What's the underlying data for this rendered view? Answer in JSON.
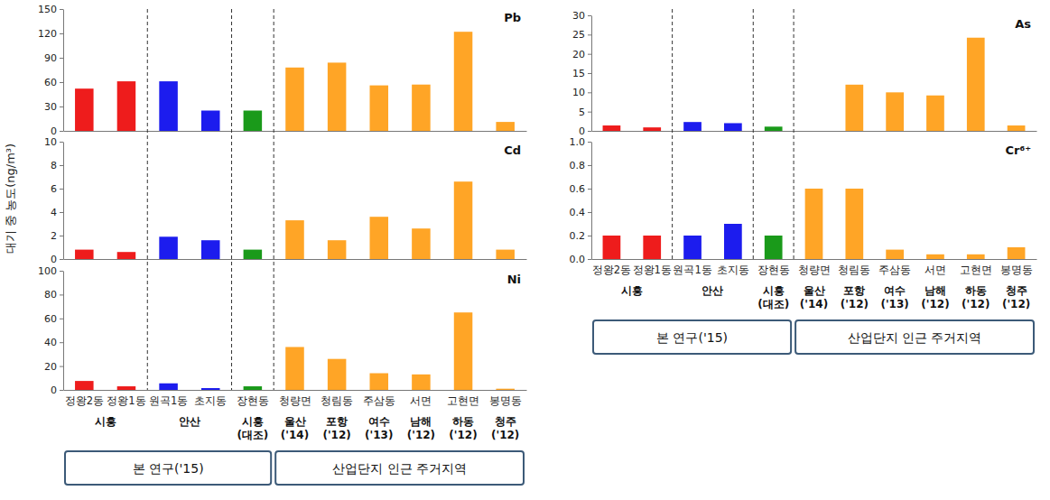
{
  "chart_data": [
    {
      "type": "bar",
      "title": "Pb",
      "y_label": "대기 중 농도(ng/m³)",
      "categories": [
        "정왕2동",
        "정왕1동",
        "원곡1동",
        "초지동",
        "장현동",
        "청량면",
        "청림동",
        "주삼동",
        "서면",
        "고현면",
        "봉명동"
      ],
      "values": [
        52,
        61,
        61,
        25,
        25,
        78,
        84,
        56,
        57,
        122,
        11
      ],
      "colors": [
        "#ee1c1c",
        "#ee1c1c",
        "#1c1cee",
        "#1c1cee",
        "#1a9a1a",
        "#ffa526",
        "#ffa526",
        "#ffa526",
        "#ffa526",
        "#ffa526",
        "#ffa526"
      ],
      "ylim": [
        0,
        150
      ],
      "yticks": [
        0,
        30,
        60,
        90,
        120,
        150
      ],
      "tick_labels": "y"
    },
    {
      "type": "bar",
      "title": "Cd",
      "categories": [
        "정왕2동",
        "정왕1동",
        "원곡1동",
        "초지동",
        "장현동",
        "청량면",
        "청림동",
        "주삼동",
        "서면",
        "고현면",
        "봉명동"
      ],
      "values": [
        0.8,
        0.6,
        1.9,
        1.6,
        0.8,
        3.3,
        1.6,
        3.6,
        2.6,
        6.6,
        0.8
      ],
      "colors": [
        "#ee1c1c",
        "#ee1c1c",
        "#1c1cee",
        "#1c1cee",
        "#1a9a1a",
        "#ffa526",
        "#ffa526",
        "#ffa526",
        "#ffa526",
        "#ffa526",
        "#ffa526"
      ],
      "ylim": [
        0,
        10
      ],
      "yticks": [
        0,
        2,
        4,
        6,
        8,
        10
      ],
      "tick_labels": "y"
    },
    {
      "type": "bar",
      "title": "Ni",
      "categories": [
        "정왕2동",
        "정왕1동",
        "원곡1동",
        "초지동",
        "장현동",
        "청량면",
        "청림동",
        "주삼동",
        "서면",
        "고현면",
        "봉명동"
      ],
      "values": [
        7.5,
        3,
        5.5,
        1.5,
        3,
        36,
        26,
        14,
        13,
        65,
        1
      ],
      "colors": [
        "#ee1c1c",
        "#ee1c1c",
        "#1c1cee",
        "#1c1cee",
        "#1a9a1a",
        "#ffa526",
        "#ffa526",
        "#ffa526",
        "#ffa526",
        "#ffa526",
        "#ffa526"
      ],
      "ylim": [
        0,
        100
      ],
      "yticks": [
        0,
        20,
        40,
        60,
        80,
        100
      ],
      "category_groups": [
        {
          "label": "시흥",
          "start": 0,
          "end": 1
        },
        {
          "label": "안산",
          "start": 2,
          "end": 3
        },
        {
          "label": "시흥\n(대조)",
          "start": 4,
          "end": 4
        },
        {
          "label": "울산\n('14)",
          "start": 5,
          "end": 5
        },
        {
          "label": "포항\n('12)",
          "start": 6,
          "end": 6
        },
        {
          "label": "여수\n('13)",
          "start": 7,
          "end": 7
        },
        {
          "label": "남해\n('12)",
          "start": 8,
          "end": 8
        },
        {
          "label": "하동\n('12)",
          "start": 9,
          "end": 9
        },
        {
          "label": "청주\n('12)",
          "start": 10,
          "end": 10
        }
      ],
      "sections": [
        {
          "label": "본 연구('15)",
          "start": 0,
          "end": 4
        },
        {
          "label": "산업단지 인근 주거지역",
          "start": 5,
          "end": 10
        }
      ]
    },
    {
      "type": "bar",
      "title": "As",
      "categories": [
        "정왕2동",
        "정왕1동",
        "원곡1동",
        "초지동",
        "장현동",
        "청량면",
        "청림동",
        "주삼동",
        "서면",
        "고현면",
        "봉명동"
      ],
      "values": [
        1.4,
        0.9,
        2.3,
        2.0,
        1.1,
        null,
        12,
        10,
        9.2,
        24.2,
        1.4
      ],
      "colors": [
        "#ee1c1c",
        "#ee1c1c",
        "#1c1cee",
        "#1c1cee",
        "#1a9a1a",
        "#ffa526",
        "#ffa526",
        "#ffa526",
        "#ffa526",
        "#ffa526",
        "#ffa526"
      ],
      "ylim": [
        0,
        30
      ],
      "yticks": [
        0,
        5,
        10,
        15,
        20,
        25,
        30
      ],
      "tick_labels": "y"
    },
    {
      "type": "bar",
      "title": "Cr⁶⁺",
      "categories": [
        "정왕2동",
        "정왕1동",
        "원곡1동",
        "초지동",
        "장현동",
        "청량면",
        "청림동",
        "주삼동",
        "서면",
        "고현면",
        "봉명동"
      ],
      "values": [
        0.2,
        0.2,
        0.2,
        0.3,
        0.2,
        0.6,
        0.6,
        0.08,
        0.04,
        0.04,
        0.1
      ],
      "colors": [
        "#ee1c1c",
        "#ee1c1c",
        "#1c1cee",
        "#1c1cee",
        "#1a9a1a",
        "#ffa526",
        "#ffa526",
        "#ffa526",
        "#ffa526",
        "#ffa526",
        "#ffa526"
      ],
      "ylim": [
        0,
        1
      ],
      "yticks": [
        {
          "value": 0,
          "label": "0.0"
        },
        {
          "value": 0.2,
          "label": "0.2"
        },
        {
          "value": 0.4,
          "label": "0.4"
        },
        {
          "value": 0.6,
          "label": "0.6"
        },
        {
          "value": 0.8,
          "label": "0.8"
        },
        {
          "value": 1,
          "label": "1.0"
        }
      ],
      "category_groups": [
        {
          "label": "시흥",
          "start": 0,
          "end": 1
        },
        {
          "label": "안산",
          "start": 2,
          "end": 3
        },
        {
          "label": "시흥\n(대조)",
          "start": 4,
          "end": 4
        },
        {
          "label": "울산\n('14)",
          "start": 5,
          "end": 5
        },
        {
          "label": "포항\n('12)",
          "start": 6,
          "end": 6
        },
        {
          "label": "여수\n('13)",
          "start": 7,
          "end": 7
        },
        {
          "label": "남해\n('12)",
          "start": 8,
          "end": 8
        },
        {
          "label": "하동\n('12)",
          "start": 9,
          "end": 9
        },
        {
          "label": "청주\n('12)",
          "start": 10,
          "end": 10
        }
      ],
      "sections": [
        {
          "label": "본 연구('15)",
          "start": 0,
          "end": 4
        },
        {
          "label": "산업단지 인근 주거지역",
          "start": 5,
          "end": 10
        }
      ]
    }
  ]
}
